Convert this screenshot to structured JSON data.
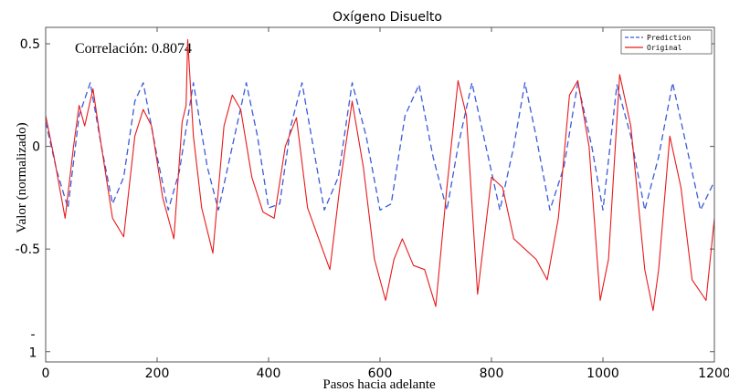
{
  "chart_data": {
    "type": "line",
    "title": "Oxígeno Disuelto",
    "annotation": "Correlación: 0.8074",
    "xlabel": "Pasos hacia adelante",
    "ylabel": "Valor (normalizado)",
    "xlim": [
      0,
      1200
    ],
    "ylim": [
      -1.05,
      0.58
    ],
    "x_ticks": [
      0,
      200,
      400,
      600,
      800,
      1000,
      1200
    ],
    "y_ticks": [
      0.5,
      0,
      -0.5,
      -1
    ],
    "x_tick_labels": [
      "0",
      "200",
      "400",
      "600",
      "800",
      "1000",
      "1200"
    ],
    "y_tick_labels": [
      "0.5",
      "0",
      "-0.5",
      "-\n1"
    ],
    "grid": false,
    "legend": {
      "position": "top-right",
      "entries": [
        "Prediction",
        "Original"
      ]
    },
    "colors": {
      "prediction": "#3b5bdb",
      "original": "#e8191b"
    },
    "series": [
      {
        "name": "Prediction",
        "style": "dashed",
        "x": [
          0,
          20,
          40,
          60,
          80,
          100,
          120,
          140,
          160,
          175,
          200,
          220,
          240,
          265,
          290,
          310,
          335,
          360,
          380,
          400,
          420,
          440,
          460,
          480,
          500,
          525,
          550,
          575,
          600,
          620,
          645,
          670,
          695,
          720,
          740,
          765,
          790,
          815,
          840,
          860,
          880,
          905,
          930,
          955,
          980,
          1000,
          1025,
          1050,
          1075,
          1100,
          1125,
          1150,
          1175,
          1200
        ],
        "y": [
          0.12,
          -0.12,
          -0.3,
          0.15,
          0.31,
          0.0,
          -0.28,
          -0.15,
          0.22,
          0.31,
          -0.05,
          -0.31,
          -0.12,
          0.31,
          -0.1,
          -0.31,
          0.0,
          0.31,
          0.05,
          -0.3,
          -0.28,
          0.1,
          0.31,
          0.0,
          -0.31,
          -0.15,
          0.31,
          0.05,
          -0.31,
          -0.28,
          0.15,
          0.3,
          -0.05,
          -0.31,
          0.0,
          0.31,
          0.0,
          -0.31,
          0.0,
          0.31,
          0.05,
          -0.31,
          -0.1,
          0.31,
          0.0,
          -0.31,
          0.3,
          0.05,
          -0.31,
          -0.05,
          0.31,
          0.0,
          -0.31,
          -0.17
        ]
      },
      {
        "name": "Original",
        "style": "solid",
        "x": [
          0,
          15,
          35,
          50,
          60,
          70,
          85,
          100,
          120,
          140,
          160,
          175,
          190,
          210,
          230,
          245,
          252,
          255,
          265,
          280,
          300,
          320,
          335,
          350,
          370,
          390,
          410,
          430,
          450,
          470,
          490,
          510,
          530,
          550,
          570,
          590,
          610,
          625,
          640,
          660,
          680,
          700,
          720,
          740,
          755,
          775,
          800,
          820,
          840,
          860,
          880,
          900,
          920,
          940,
          955,
          975,
          995,
          1010,
          1030,
          1050,
          1075,
          1090,
          1100,
          1120,
          1140,
          1160,
          1185,
          1200
        ],
        "y": [
          0.15,
          -0.05,
          -0.35,
          0.0,
          0.2,
          0.1,
          0.28,
          0.0,
          -0.35,
          -0.44,
          0.05,
          0.18,
          0.1,
          -0.25,
          -0.45,
          0.12,
          0.2,
          0.52,
          0.05,
          -0.3,
          -0.52,
          0.1,
          0.25,
          0.18,
          -0.15,
          -0.32,
          -0.35,
          0.0,
          0.14,
          -0.3,
          -0.45,
          -0.6,
          -0.15,
          0.22,
          -0.1,
          -0.55,
          -0.75,
          -0.55,
          -0.45,
          -0.58,
          -0.6,
          -0.78,
          -0.2,
          0.32,
          0.15,
          -0.72,
          -0.15,
          -0.2,
          -0.45,
          -0.5,
          -0.55,
          -0.65,
          -0.35,
          0.25,
          0.32,
          0.0,
          -0.75,
          -0.55,
          0.35,
          0.1,
          -0.6,
          -0.8,
          -0.6,
          0.05,
          -0.2,
          -0.65,
          -0.75,
          -0.35
        ]
      }
    ]
  }
}
